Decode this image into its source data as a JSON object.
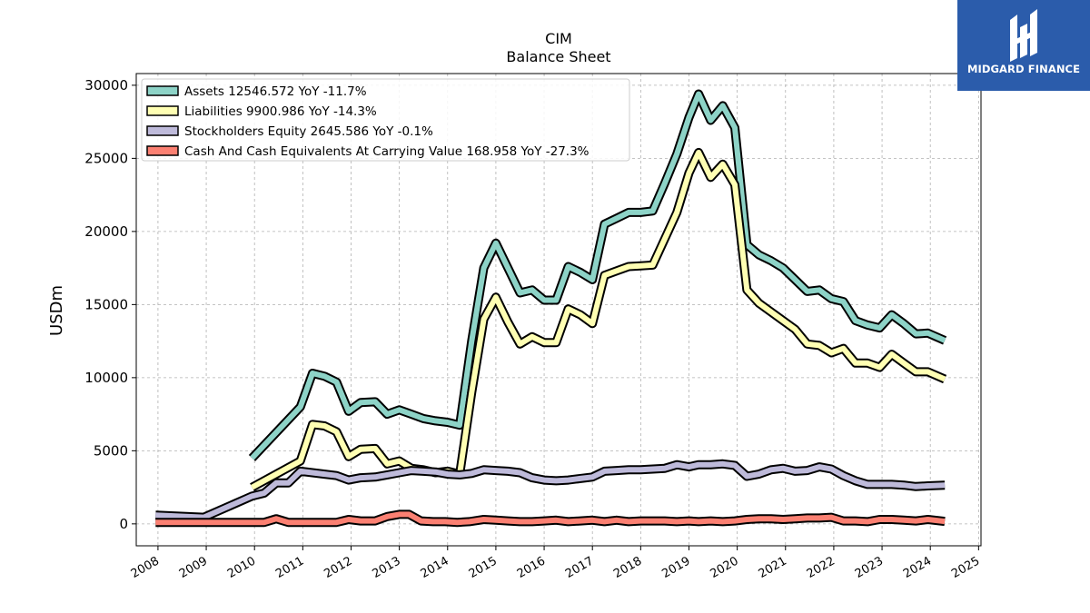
{
  "logo": {
    "text": "MIDGARD FINANCE",
    "color": "#2b5cab"
  },
  "chart_data": {
    "type": "line",
    "title": "CIM",
    "subtitle": "Balance  Sheet",
    "ylabel": "USDm",
    "xlim": [
      2007.55,
      2025.05
    ],
    "ylim": [
      -1500,
      30800
    ],
    "yticks": [
      0,
      5000,
      10000,
      15000,
      20000,
      25000,
      30000
    ],
    "xticks": [
      "2008",
      "2009",
      "2010",
      "2011",
      "2012",
      "2013",
      "2014",
      "2015",
      "2016",
      "2017",
      "2018",
      "2019",
      "2020",
      "2021",
      "2022",
      "2023",
      "2024",
      "2025"
    ],
    "grid": true,
    "legend_position": "top-left",
    "series": [
      {
        "name": "Assets",
        "legend": "Assets  12546.572 YoY -11.7%",
        "color": "#8dd3c7",
        "points": [
          [
            2009.95,
            4500
          ],
          [
            2010.95,
            8000
          ],
          [
            2011.2,
            10300
          ],
          [
            2011.45,
            10100
          ],
          [
            2011.7,
            9700
          ],
          [
            2011.95,
            7700
          ],
          [
            2012.2,
            8300
          ],
          [
            2012.5,
            8350
          ],
          [
            2012.75,
            7500
          ],
          [
            2013.0,
            7800
          ],
          [
            2013.25,
            7500
          ],
          [
            2013.5,
            7200
          ],
          [
            2013.75,
            7050
          ],
          [
            2014.0,
            6950
          ],
          [
            2014.25,
            6750
          ],
          [
            2014.5,
            12500
          ],
          [
            2014.75,
            17500
          ],
          [
            2015.0,
            19200
          ],
          [
            2015.25,
            17500
          ],
          [
            2015.5,
            15800
          ],
          [
            2015.75,
            16000
          ],
          [
            2016.0,
            15300
          ],
          [
            2016.25,
            15300
          ],
          [
            2016.5,
            17600
          ],
          [
            2016.75,
            17200
          ],
          [
            2017.0,
            16700
          ],
          [
            2017.25,
            20500
          ],
          [
            2017.5,
            20900
          ],
          [
            2017.75,
            21300
          ],
          [
            2018.0,
            21300
          ],
          [
            2018.25,
            21400
          ],
          [
            2018.5,
            23300
          ],
          [
            2018.75,
            25300
          ],
          [
            2019.0,
            27800
          ],
          [
            2019.2,
            29400
          ],
          [
            2019.45,
            27600
          ],
          [
            2019.7,
            28600
          ],
          [
            2019.95,
            27100
          ],
          [
            2020.2,
            19100
          ],
          [
            2020.45,
            18400
          ],
          [
            2020.7,
            18000
          ],
          [
            2020.95,
            17500
          ],
          [
            2021.2,
            16700
          ],
          [
            2021.45,
            15900
          ],
          [
            2021.7,
            16000
          ],
          [
            2021.95,
            15400
          ],
          [
            2022.2,
            15200
          ],
          [
            2022.45,
            13900
          ],
          [
            2022.7,
            13600
          ],
          [
            2022.95,
            13400
          ],
          [
            2023.2,
            14300
          ],
          [
            2023.45,
            13700
          ],
          [
            2023.7,
            13000
          ],
          [
            2023.95,
            13050
          ],
          [
            2024.3,
            12546.572
          ]
        ]
      },
      {
        "name": "Liabilities",
        "legend": "Liabilities  9900.986 YoY -14.3%",
        "color": "#ffffb3",
        "points": [
          [
            2009.95,
            2500
          ],
          [
            2010.95,
            4300
          ],
          [
            2011.2,
            6800
          ],
          [
            2011.45,
            6700
          ],
          [
            2011.7,
            6300
          ],
          [
            2011.95,
            4600
          ],
          [
            2012.2,
            5100
          ],
          [
            2012.5,
            5150
          ],
          [
            2012.75,
            4100
          ],
          [
            2013.0,
            4300
          ],
          [
            2013.25,
            3800
          ],
          [
            2013.5,
            3700
          ],
          [
            2013.75,
            3500
          ],
          [
            2014.0,
            3600
          ],
          [
            2014.25,
            3400
          ],
          [
            2014.5,
            9000
          ],
          [
            2014.75,
            14000
          ],
          [
            2015.0,
            15500
          ],
          [
            2015.25,
            13800
          ],
          [
            2015.5,
            12300
          ],
          [
            2015.75,
            12800
          ],
          [
            2016.0,
            12400
          ],
          [
            2016.25,
            12400
          ],
          [
            2016.5,
            14700
          ],
          [
            2016.75,
            14300
          ],
          [
            2017.0,
            13700
          ],
          [
            2017.25,
            17000
          ],
          [
            2017.5,
            17300
          ],
          [
            2017.75,
            17600
          ],
          [
            2018.0,
            17650
          ],
          [
            2018.25,
            17700
          ],
          [
            2018.5,
            19500
          ],
          [
            2018.75,
            21300
          ],
          [
            2019.0,
            24000
          ],
          [
            2019.2,
            25400
          ],
          [
            2019.45,
            23700
          ],
          [
            2019.7,
            24600
          ],
          [
            2019.95,
            23200
          ],
          [
            2020.2,
            16000
          ],
          [
            2020.45,
            15100
          ],
          [
            2020.7,
            14500
          ],
          [
            2020.95,
            13900
          ],
          [
            2021.2,
            13300
          ],
          [
            2021.45,
            12300
          ],
          [
            2021.7,
            12200
          ],
          [
            2021.95,
            11700
          ],
          [
            2022.2,
            12000
          ],
          [
            2022.45,
            11000
          ],
          [
            2022.7,
            11000
          ],
          [
            2022.95,
            10700
          ],
          [
            2023.2,
            11600
          ],
          [
            2023.45,
            11000
          ],
          [
            2023.7,
            10400
          ],
          [
            2023.95,
            10400
          ],
          [
            2024.3,
            9900.986
          ]
        ]
      },
      {
        "name": "Stockholders Equity",
        "legend": "Stockholders Equity  2645.586 YoY -0.1%",
        "color": "#bebada",
        "points": [
          [
            2007.95,
            600
          ],
          [
            2008.95,
            450
          ],
          [
            2009.95,
            1900
          ],
          [
            2010.2,
            2100
          ],
          [
            2010.45,
            2800
          ],
          [
            2010.7,
            2800
          ],
          [
            2010.95,
            3600
          ],
          [
            2011.2,
            3500
          ],
          [
            2011.45,
            3400
          ],
          [
            2011.7,
            3300
          ],
          [
            2011.95,
            3000
          ],
          [
            2012.2,
            3150
          ],
          [
            2012.5,
            3200
          ],
          [
            2012.75,
            3350
          ],
          [
            2013.0,
            3500
          ],
          [
            2013.25,
            3650
          ],
          [
            2013.5,
            3600
          ],
          [
            2013.75,
            3550
          ],
          [
            2014.0,
            3400
          ],
          [
            2014.25,
            3350
          ],
          [
            2014.5,
            3450
          ],
          [
            2014.75,
            3700
          ],
          [
            2015.0,
            3650
          ],
          [
            2015.25,
            3600
          ],
          [
            2015.5,
            3500
          ],
          [
            2015.75,
            3150
          ],
          [
            2016.0,
            3000
          ],
          [
            2016.25,
            2950
          ],
          [
            2016.5,
            3000
          ],
          [
            2016.75,
            3100
          ],
          [
            2017.0,
            3200
          ],
          [
            2017.25,
            3600
          ],
          [
            2017.5,
            3650
          ],
          [
            2017.75,
            3700
          ],
          [
            2018.0,
            3700
          ],
          [
            2018.25,
            3750
          ],
          [
            2018.5,
            3800
          ],
          [
            2018.75,
            4050
          ],
          [
            2019.0,
            3900
          ],
          [
            2019.2,
            4050
          ],
          [
            2019.45,
            4050
          ],
          [
            2019.7,
            4100
          ],
          [
            2019.95,
            4000
          ],
          [
            2020.2,
            3250
          ],
          [
            2020.45,
            3400
          ],
          [
            2020.7,
            3700
          ],
          [
            2020.95,
            3800
          ],
          [
            2021.2,
            3600
          ],
          [
            2021.45,
            3650
          ],
          [
            2021.7,
            3900
          ],
          [
            2021.95,
            3750
          ],
          [
            2022.2,
            3300
          ],
          [
            2022.45,
            2950
          ],
          [
            2022.7,
            2700
          ],
          [
            2022.95,
            2700
          ],
          [
            2023.2,
            2700
          ],
          [
            2023.45,
            2650
          ],
          [
            2023.7,
            2550
          ],
          [
            2023.95,
            2600
          ],
          [
            2024.3,
            2645.586
          ]
        ]
      },
      {
        "name": "Cash And Cash Equivalents At Carrying Value",
        "legend": "Cash And Cash Equivalents At Carrying Value  168.958 YoY -27.3%",
        "color": "#fb8072",
        "points": [
          [
            2007.95,
            100
          ],
          [
            2008.95,
            100
          ],
          [
            2009.95,
            100
          ],
          [
            2010.2,
            100
          ],
          [
            2010.45,
            350
          ],
          [
            2010.7,
            100
          ],
          [
            2010.95,
            100
          ],
          [
            2011.2,
            100
          ],
          [
            2011.45,
            100
          ],
          [
            2011.7,
            100
          ],
          [
            2011.95,
            300
          ],
          [
            2012.2,
            200
          ],
          [
            2012.5,
            200
          ],
          [
            2012.75,
            500
          ],
          [
            2013.0,
            650
          ],
          [
            2013.2,
            650
          ],
          [
            2013.45,
            200
          ],
          [
            2013.7,
            150
          ],
          [
            2013.95,
            150
          ],
          [
            2014.2,
            100
          ],
          [
            2014.45,
            150
          ],
          [
            2014.75,
            300
          ],
          [
            2015.0,
            250
          ],
          [
            2015.25,
            200
          ],
          [
            2015.5,
            150
          ],
          [
            2015.75,
            150
          ],
          [
            2016.0,
            200
          ],
          [
            2016.25,
            250
          ],
          [
            2016.5,
            150
          ],
          [
            2016.75,
            200
          ],
          [
            2017.0,
            250
          ],
          [
            2017.25,
            150
          ],
          [
            2017.5,
            250
          ],
          [
            2017.75,
            150
          ],
          [
            2018.0,
            200
          ],
          [
            2018.25,
            200
          ],
          [
            2018.5,
            200
          ],
          [
            2018.75,
            150
          ],
          [
            2019.0,
            200
          ],
          [
            2019.2,
            150
          ],
          [
            2019.45,
            200
          ],
          [
            2019.7,
            150
          ],
          [
            2019.95,
            200
          ],
          [
            2020.2,
            300
          ],
          [
            2020.45,
            350
          ],
          [
            2020.7,
            350
          ],
          [
            2020.95,
            300
          ],
          [
            2021.2,
            350
          ],
          [
            2021.45,
            400
          ],
          [
            2021.7,
            400
          ],
          [
            2021.95,
            450
          ],
          [
            2022.2,
            200
          ],
          [
            2022.45,
            200
          ],
          [
            2022.7,
            150
          ],
          [
            2022.95,
            300
          ],
          [
            2023.2,
            300
          ],
          [
            2023.45,
            250
          ],
          [
            2023.7,
            200
          ],
          [
            2023.95,
            300
          ],
          [
            2024.3,
            168.958
          ]
        ]
      }
    ]
  }
}
